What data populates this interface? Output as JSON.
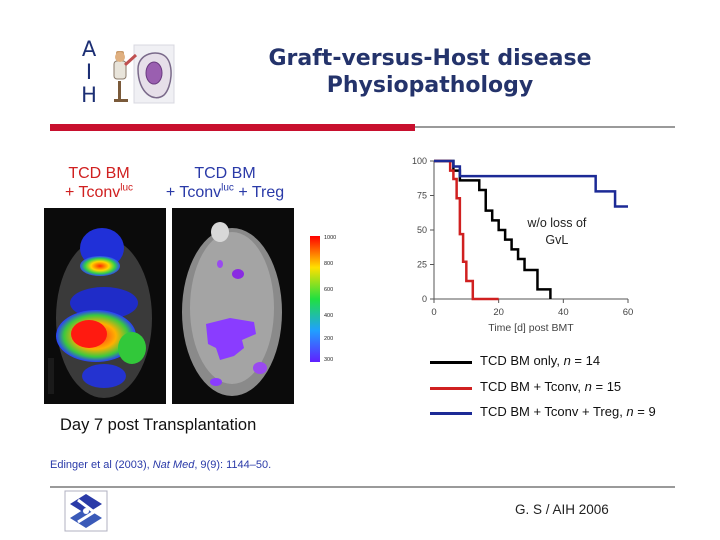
{
  "header": {
    "logo_letters": [
      "A",
      "I",
      "H"
    ],
    "title_line1": "Graft-versus-Host disease",
    "title_line2": "Physiopathology"
  },
  "imaging": {
    "panel1_label_line1": "TCD BM",
    "panel1_label_line2": "+ Tconv",
    "panel1_label_sup": "luc",
    "panel2_label_line1": "TCD BM",
    "panel2_label_line2a": "+ Tconv",
    "panel2_label_sup": "luc",
    "panel2_label_line2b": " + Treg",
    "scale_ticks": [
      "1000",
      "800",
      "600",
      "400",
      "200",
      "300"
    ],
    "caption": "Day 7 post Transplantation"
  },
  "citation": {
    "authors": "Edinger et al (2003), ",
    "journal": "Nat Med",
    "details": ", 9(9): 1144–50."
  },
  "chart_data": {
    "type": "line",
    "subtype": "step (Kaplan-Meier survival)",
    "xlabel": "Time [d] post BMT",
    "ylabel": "",
    "xlim": [
      0,
      60
    ],
    "ylim": [
      0,
      100
    ],
    "x_ticks": [
      "0",
      "20",
      "40",
      "60"
    ],
    "y_ticks": [
      "0",
      "25",
      "50",
      "75",
      "100"
    ],
    "annotation_line1": "w/o loss of",
    "annotation_line2": "GvL",
    "legend_position": "below",
    "series": [
      {
        "name": "TCD BM only, n = 14",
        "label_main": "TCD BM only, ",
        "label_n": "n",
        "label_rest": " = 14",
        "color": "#000000",
        "x": [
          0,
          6,
          8,
          14,
          16,
          18,
          20,
          22,
          24,
          26,
          28,
          32,
          36
        ],
        "y": [
          100,
          93,
          86,
          79,
          64,
          57,
          50,
          43,
          36,
          29,
          21,
          7,
          0
        ]
      },
      {
        "name": "TCD BM + Tconv, n = 15",
        "label_main": "TCD BM + Tconv, ",
        "label_n": "n",
        "label_rest": " = 15",
        "color": "#d02020",
        "x": [
          0,
          5,
          6,
          7,
          8,
          9,
          10,
          12,
          20
        ],
        "y": [
          100,
          93,
          87,
          73,
          47,
          27,
          13,
          0,
          0
        ]
      },
      {
        "name": "TCD BM + Tconv + Treg, n = 9",
        "label_main": "TCD BM + Tconv + Treg, ",
        "label_n": "n",
        "label_rest": " = 9",
        "color": "#1c2a96",
        "x": [
          0,
          6,
          8,
          50,
          56,
          60
        ],
        "y": [
          100,
          96,
          89,
          78,
          67,
          67
        ]
      }
    ]
  },
  "footer": {
    "text": "G. S / AIH 2006"
  },
  "colors": {
    "title": "#24336b",
    "accent_red": "#c8102e",
    "divider_grey": "#9a9a9a"
  }
}
